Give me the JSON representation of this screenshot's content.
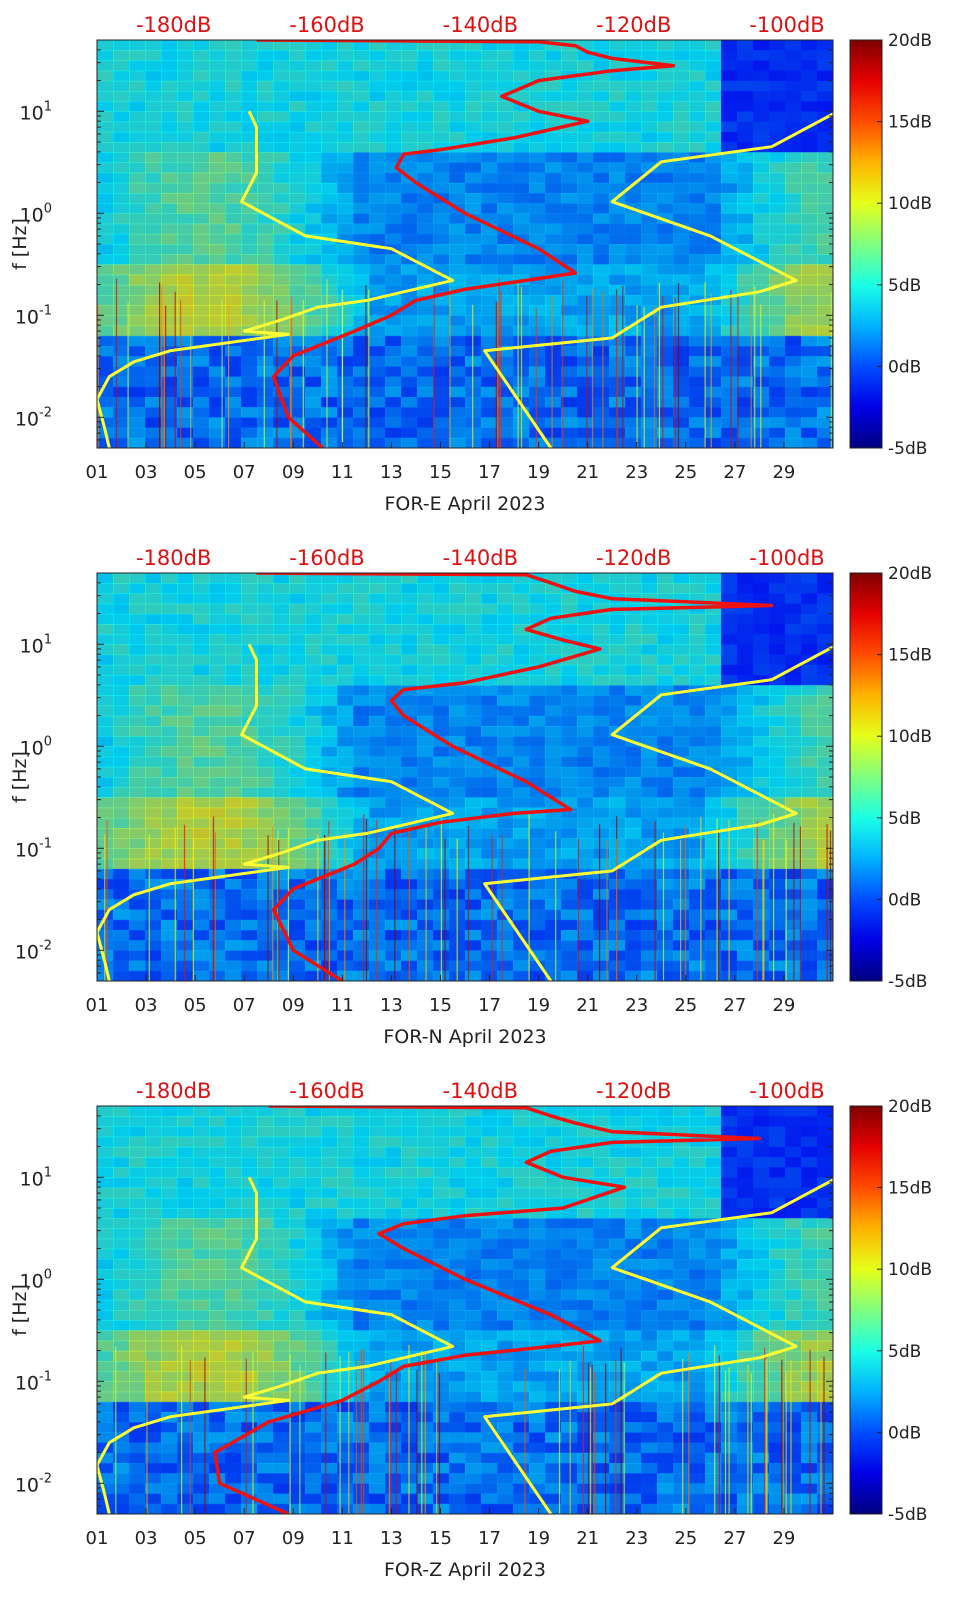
{
  "chart_data": [
    {
      "type": "heatmap",
      "title": "",
      "xlabel": "FOR-E April 2023",
      "ylabel": "f [Hz]",
      "x_ticks": [
        "01",
        "03",
        "05",
        "07",
        "09",
        "11",
        "13",
        "15",
        "17",
        "19",
        "21",
        "23",
        "25",
        "27",
        "29"
      ],
      "x_range_days": [
        1,
        31
      ],
      "y_scale": "log",
      "y_range_hz": [
        0.005,
        50
      ],
      "y_ticks": [
        {
          "base": "10",
          "exp": "-2",
          "value": 0.01
        },
        {
          "base": "10",
          "exp": "-1",
          "value": 0.1
        },
        {
          "base": "10",
          "exp": "0",
          "value": 1
        },
        {
          "base": "10",
          "exp": "1",
          "value": 10
        }
      ],
      "top_axis_labels": [
        "-180dB",
        "-160dB",
        "-140dB",
        "-120dB",
        "-100dB"
      ],
      "top_axis_db": [
        -180,
        -160,
        -140,
        -120,
        -100
      ],
      "top_axis_range_db": [
        -190,
        -94
      ],
      "colorbar": {
        "min": -5,
        "max": 20,
        "labels": [
          "20dB",
          "15dB",
          "10dB",
          "5dB",
          "0dB",
          "-5dB"
        ],
        "colormap": "jet"
      },
      "series": [
        {
          "color": "#ffff33",
          "points": [
            [
              7.2,
              10
            ],
            [
              7.5,
              7
            ],
            [
              7.5,
              2.5
            ],
            [
              6.9,
              1.3
            ],
            [
              9.5,
              0.6
            ],
            [
              13,
              0.45
            ],
            [
              15.5,
              0.22
            ],
            [
              12,
              0.14
            ],
            [
              10,
              0.12
            ],
            [
              8.5,
              0.09
            ],
            [
              7,
              0.07
            ],
            [
              8.8,
              0.065
            ],
            [
              4,
              0.045
            ],
            [
              2.5,
              0.035
            ],
            [
              1.5,
              0.025
            ],
            [
              1,
              0.015
            ],
            [
              1.3,
              0.008
            ],
            [
              1.5,
              0.005
            ]
          ]
        },
        {
          "color": "#ffff33",
          "points": [
            [
              31.2,
              10
            ],
            [
              28.5,
              4.5
            ],
            [
              24,
              3.2
            ],
            [
              22,
              1.3
            ],
            [
              26,
              0.6
            ],
            [
              29.5,
              0.22
            ],
            [
              28,
              0.17
            ],
            [
              24,
              0.12
            ],
            [
              22,
              0.06
            ],
            [
              16.8,
              0.045
            ],
            [
              19.5,
              0.005
            ]
          ]
        },
        {
          "color": "#ee1111",
          "points": [
            [
              10.2,
              0.005
            ],
            [
              8.8,
              0.01
            ],
            [
              8.2,
              0.025
            ],
            [
              9,
              0.04
            ],
            [
              11.5,
              0.07
            ],
            [
              13,
              0.1
            ],
            [
              14,
              0.14
            ],
            [
              16,
              0.18
            ],
            [
              18.5,
              0.22
            ],
            [
              20.5,
              0.26
            ],
            [
              19,
              0.45
            ],
            [
              16,
              1
            ],
            [
              14,
              2
            ],
            [
              13.2,
              2.8
            ],
            [
              13.5,
              3.8
            ],
            [
              15,
              4.2
            ],
            [
              18,
              5.5
            ],
            [
              21,
              8
            ],
            [
              19,
              10
            ],
            [
              17.5,
              14
            ],
            [
              19,
              20
            ],
            [
              22,
              25
            ],
            [
              24.5,
              28
            ],
            [
              22,
              33
            ],
            [
              21,
              38
            ],
            [
              20.5,
              44
            ],
            [
              19,
              48
            ],
            [
              7.5,
              50
            ]
          ]
        }
      ]
    },
    {
      "type": "heatmap",
      "title": "",
      "xlabel": "FOR-N April 2023",
      "ylabel": "f [Hz]",
      "x_ticks": [
        "01",
        "03",
        "05",
        "07",
        "09",
        "11",
        "13",
        "15",
        "17",
        "19",
        "21",
        "23",
        "25",
        "27",
        "29"
      ],
      "x_range_days": [
        1,
        31
      ],
      "y_scale": "log",
      "y_range_hz": [
        0.005,
        50
      ],
      "y_ticks": [
        {
          "base": "10",
          "exp": "-2",
          "value": 0.01
        },
        {
          "base": "10",
          "exp": "-1",
          "value": 0.1
        },
        {
          "base": "10",
          "exp": "0",
          "value": 1
        },
        {
          "base": "10",
          "exp": "1",
          "value": 10
        }
      ],
      "top_axis_labels": [
        "-180dB",
        "-160dB",
        "-140dB",
        "-120dB",
        "-100dB"
      ],
      "top_axis_db": [
        -180,
        -160,
        -140,
        -120,
        -100
      ],
      "top_axis_range_db": [
        -190,
        -94
      ],
      "colorbar": {
        "min": -5,
        "max": 20,
        "labels": [
          "20dB",
          "15dB",
          "10dB",
          "5dB",
          "0dB",
          "-5dB"
        ],
        "colormap": "jet"
      },
      "series": [
        {
          "color": "#ffff33",
          "points": [
            [
              7.2,
              10
            ],
            [
              7.5,
              7
            ],
            [
              7.5,
              2.5
            ],
            [
              6.9,
              1.3
            ],
            [
              9.5,
              0.6
            ],
            [
              13,
              0.45
            ],
            [
              15.5,
              0.22
            ],
            [
              12,
              0.14
            ],
            [
              10,
              0.12
            ],
            [
              8.5,
              0.09
            ],
            [
              7,
              0.07
            ],
            [
              8.8,
              0.065
            ],
            [
              4,
              0.045
            ],
            [
              2.5,
              0.035
            ],
            [
              1.5,
              0.025
            ],
            [
              1,
              0.015
            ],
            [
              1.3,
              0.008
            ],
            [
              1.5,
              0.005
            ]
          ]
        },
        {
          "color": "#ffff33",
          "points": [
            [
              31.2,
              10
            ],
            [
              28.5,
              4.5
            ],
            [
              24,
              3.2
            ],
            [
              22,
              1.3
            ],
            [
              26,
              0.6
            ],
            [
              29.5,
              0.22
            ],
            [
              28,
              0.17
            ],
            [
              24,
              0.12
            ],
            [
              22,
              0.06
            ],
            [
              16.8,
              0.045
            ],
            [
              19.5,
              0.005
            ]
          ]
        },
        {
          "color": "#ee1111",
          "points": [
            [
              11,
              0.005
            ],
            [
              9,
              0.01
            ],
            [
              8.2,
              0.025
            ],
            [
              9,
              0.04
            ],
            [
              11.5,
              0.07
            ],
            [
              12.5,
              0.1
            ],
            [
              13,
              0.14
            ],
            [
              15,
              0.18
            ],
            [
              18,
              0.22
            ],
            [
              20.3,
              0.24
            ],
            [
              18.5,
              0.45
            ],
            [
              15.5,
              1
            ],
            [
              13.5,
              2
            ],
            [
              13,
              2.8
            ],
            [
              13.5,
              3.6
            ],
            [
              16,
              4.2
            ],
            [
              19,
              6
            ],
            [
              21.5,
              9
            ],
            [
              20,
              11
            ],
            [
              18.5,
              14
            ],
            [
              19.5,
              18
            ],
            [
              22,
              22
            ],
            [
              28.5,
              24
            ],
            [
              22,
              28
            ],
            [
              20.5,
              33
            ],
            [
              19.5,
              40
            ],
            [
              18.5,
              48
            ],
            [
              7.5,
              50
            ]
          ]
        }
      ]
    },
    {
      "type": "heatmap",
      "title": "",
      "xlabel": "FOR-Z April 2023",
      "ylabel": "f [Hz]",
      "x_ticks": [
        "01",
        "03",
        "05",
        "07",
        "09",
        "11",
        "13",
        "15",
        "17",
        "19",
        "21",
        "23",
        "25",
        "27",
        "29"
      ],
      "x_range_days": [
        1,
        31
      ],
      "y_scale": "log",
      "y_range_hz": [
        0.005,
        50
      ],
      "y_ticks": [
        {
          "base": "10",
          "exp": "-2",
          "value": 0.01
        },
        {
          "base": "10",
          "exp": "-1",
          "value": 0.1
        },
        {
          "base": "10",
          "exp": "0",
          "value": 1
        },
        {
          "base": "10",
          "exp": "1",
          "value": 10
        }
      ],
      "top_axis_labels": [
        "-180dB",
        "-160dB",
        "-140dB",
        "-120dB",
        "-100dB"
      ],
      "top_axis_db": [
        -180,
        -160,
        -140,
        -120,
        -100
      ],
      "top_axis_range_db": [
        -190,
        -94
      ],
      "colorbar": {
        "min": -5,
        "max": 20,
        "labels": [
          "20dB",
          "15dB",
          "10dB",
          "5dB",
          "0dB",
          "-5dB"
        ],
        "colormap": "jet"
      },
      "series": [
        {
          "color": "#ffff33",
          "points": [
            [
              7.2,
              10
            ],
            [
              7.5,
              7
            ],
            [
              7.5,
              2.5
            ],
            [
              6.9,
              1.3
            ],
            [
              9.5,
              0.6
            ],
            [
              13,
              0.45
            ],
            [
              15.5,
              0.22
            ],
            [
              12,
              0.14
            ],
            [
              10,
              0.12
            ],
            [
              8.5,
              0.09
            ],
            [
              7,
              0.07
            ],
            [
              8.8,
              0.065
            ],
            [
              4,
              0.045
            ],
            [
              2.5,
              0.035
            ],
            [
              1.5,
              0.025
            ],
            [
              1,
              0.015
            ],
            [
              1.3,
              0.008
            ],
            [
              1.5,
              0.005
            ]
          ]
        },
        {
          "color": "#ffff33",
          "points": [
            [
              31.2,
              10
            ],
            [
              28.5,
              4.5
            ],
            [
              24,
              3.2
            ],
            [
              22,
              1.3
            ],
            [
              26,
              0.6
            ],
            [
              29.5,
              0.22
            ],
            [
              28,
              0.17
            ],
            [
              24,
              0.12
            ],
            [
              22,
              0.06
            ],
            [
              16.8,
              0.045
            ],
            [
              19.5,
              0.005
            ]
          ]
        },
        {
          "color": "#ee1111",
          "points": [
            [
              8.8,
              0.005
            ],
            [
              6,
              0.01
            ],
            [
              5.8,
              0.02
            ],
            [
              8,
              0.04
            ],
            [
              11,
              0.065
            ],
            [
              12.5,
              0.1
            ],
            [
              13.5,
              0.14
            ],
            [
              16,
              0.18
            ],
            [
              19.5,
              0.22
            ],
            [
              21.5,
              0.25
            ],
            [
              19.5,
              0.45
            ],
            [
              16,
              1
            ],
            [
              13.5,
              2
            ],
            [
              12.5,
              2.8
            ],
            [
              13.5,
              3.5
            ],
            [
              16,
              4.2
            ],
            [
              20,
              5
            ],
            [
              22.5,
              8
            ],
            [
              20,
              10
            ],
            [
              18.5,
              14
            ],
            [
              19.5,
              18
            ],
            [
              22,
              22
            ],
            [
              28,
              24
            ],
            [
              22,
              28
            ],
            [
              20.5,
              34
            ],
            [
              19.5,
              40
            ],
            [
              18.5,
              48
            ],
            [
              8,
              50
            ]
          ]
        }
      ]
    }
  ]
}
